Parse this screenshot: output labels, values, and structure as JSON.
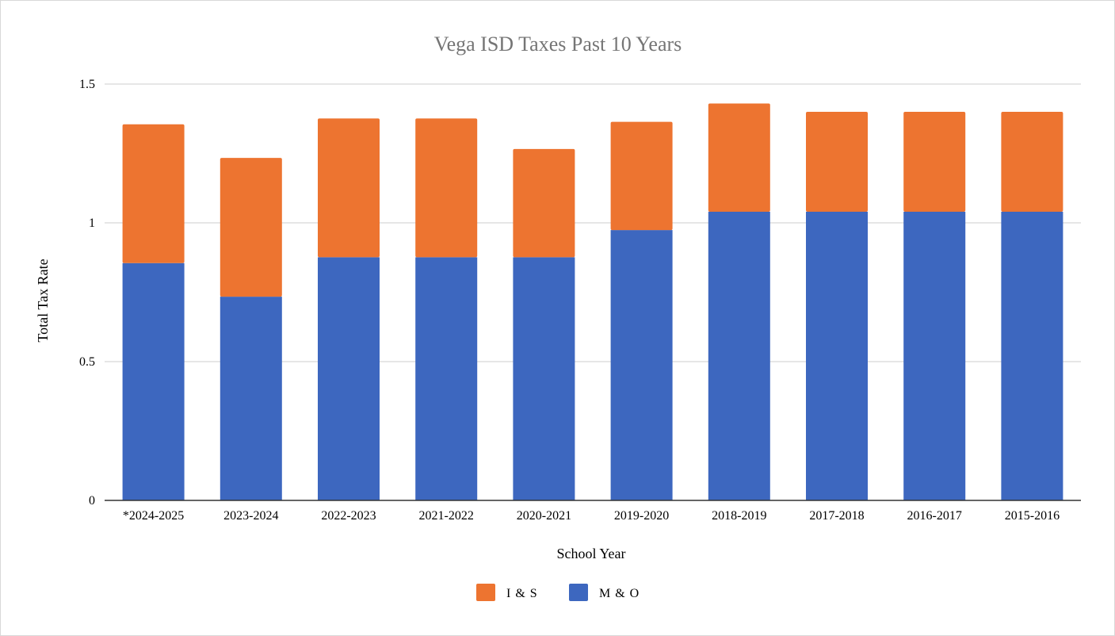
{
  "chart_data": {
    "type": "bar",
    "stacked": true,
    "title": "Vega ISD Taxes Past 10 Years",
    "xlabel": "School Year",
    "ylabel": "Total Tax Rate",
    "ylim": [
      0,
      1.5
    ],
    "yticks": [
      0,
      0.5,
      1,
      1.5
    ],
    "ytick_labels": [
      "0",
      "0.5",
      "1",
      "1.5"
    ],
    "grid": true,
    "legend_position": "bottom",
    "categories": [
      "*2024-2025",
      "2023-2024",
      "2022-2023",
      "2021-2022",
      "2020-2021",
      "2019-2020",
      "2018-2019",
      "2017-2018",
      "2016-2017",
      "2015-2016"
    ],
    "series": [
      {
        "name": "M & O",
        "color": "#3d67bf",
        "values": [
          0.855,
          0.734,
          0.876,
          0.876,
          0.876,
          0.974,
          1.04,
          1.04,
          1.04,
          1.04
        ]
      },
      {
        "name": "I & S",
        "color": "#ed7430",
        "values": [
          0.5,
          0.5,
          0.5,
          0.5,
          0.39,
          0.39,
          0.39,
          0.36,
          0.36,
          0.36
        ]
      }
    ],
    "legend_order": [
      "I & S",
      "M & O"
    ]
  }
}
